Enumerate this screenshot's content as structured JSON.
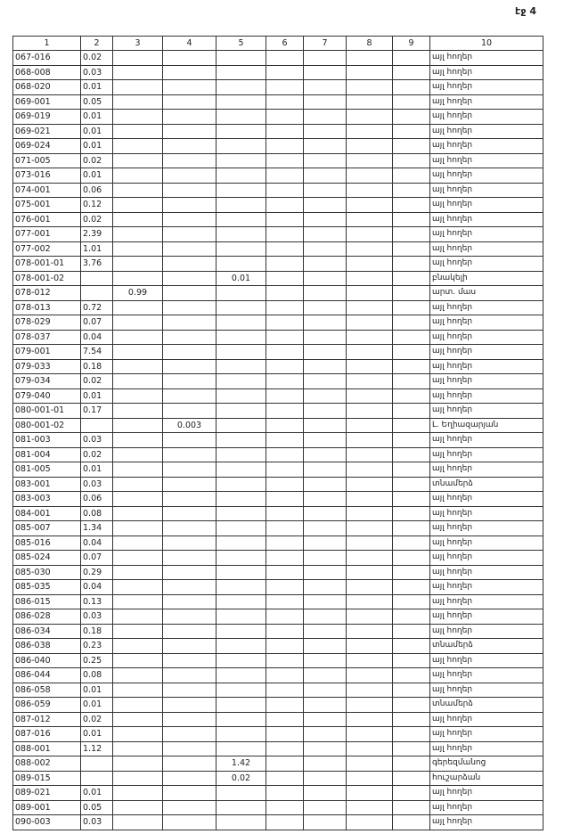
{
  "header": {
    "page": "էջ 4"
  },
  "table": {
    "columns": [
      "1",
      "2",
      "3",
      "4",
      "5",
      "6",
      "7",
      "8",
      "9",
      "10"
    ],
    "rows": [
      {
        "1": "067-016",
        "2": "0.02",
        "10": "այլ հողեր"
      },
      {
        "1": "068-008",
        "2": "0.03",
        "10": "այլ հողեր"
      },
      {
        "1": "068-020",
        "2": "0.01",
        "10": "այլ հողեր"
      },
      {
        "1": "069-001",
        "2": "0.05",
        "10": "այլ հողեր"
      },
      {
        "1": "069-019",
        "2": "0.01",
        "10": "այլ հողեր"
      },
      {
        "1": "069-021",
        "2": "0.01",
        "10": "այլ հողեր"
      },
      {
        "1": "069-024",
        "2": "0.01",
        "10": "այլ հողեր"
      },
      {
        "1": "071-005",
        "2": "0.02",
        "10": "այլ հողեր"
      },
      {
        "1": "073-016",
        "2": "0.01",
        "10": "այլ հողեր"
      },
      {
        "1": "074-001",
        "2": "0.06",
        "10": "այլ հողեր"
      },
      {
        "1": "075-001",
        "2": "0.12",
        "10": "այլ հողեր"
      },
      {
        "1": "076-001",
        "2": "0.02",
        "10": "այլ հողեր"
      },
      {
        "1": "077-001",
        "2": "2.39",
        "10": "այլ հողեր"
      },
      {
        "1": "077-002",
        "2": "1.01",
        "10": "այլ հողեր"
      },
      {
        "1": "078-001-01",
        "2": "3.76",
        "10": "այլ հողեր"
      },
      {
        "1": "078-001-02",
        "5": "0.01",
        "10": "բնակելի"
      },
      {
        "1": "078-012",
        "3": "0.99",
        "10": "արտ. մաս"
      },
      {
        "1": "078-013",
        "2": "0.72",
        "10": "այլ հողեր"
      },
      {
        "1": "078-029",
        "2": "0.07",
        "10": "այլ հողեր"
      },
      {
        "1": "078-037",
        "2": "0.04",
        "10": "այլ հողեր"
      },
      {
        "1": "079-001",
        "2": "7.54",
        "10": "այլ հողեր"
      },
      {
        "1": "079-033",
        "2": "0.18",
        "10": "այլ հողեր"
      },
      {
        "1": "079-034",
        "2": "0.02",
        "10": "այլ հողեր"
      },
      {
        "1": "079-040",
        "2": "0.01",
        "10": "այլ հողեր"
      },
      {
        "1": "080-001-01",
        "2": "0.17",
        "10": "այլ հողեր"
      },
      {
        "1": "080-001-02",
        "4": "0.003",
        "10": "Լ. Եղիազարյան"
      },
      {
        "1": "081-003",
        "2": "0.03",
        "10": "այլ հողեր"
      },
      {
        "1": "081-004",
        "2": "0.02",
        "10": "այլ հողեր"
      },
      {
        "1": "081-005",
        "2": "0.01",
        "10": "այլ հողեր"
      },
      {
        "1": "083-001",
        "2": "0.03",
        "10": "տնամերձ"
      },
      {
        "1": "083-003",
        "2": "0.06",
        "10": "այլ հողեր"
      },
      {
        "1": "084-001",
        "2": "0.08",
        "10": "այլ հողեր"
      },
      {
        "1": "085-007",
        "2": "1.34",
        "10": "այլ հողեր"
      },
      {
        "1": "085-016",
        "2": "0.04",
        "10": "այլ հողեր"
      },
      {
        "1": "085-024",
        "2": "0.07",
        "10": "այլ հողեր"
      },
      {
        "1": "085-030",
        "2": "0.29",
        "10": "այլ հողեր"
      },
      {
        "1": "085-035",
        "2": "0.04",
        "10": "այլ հողեր"
      },
      {
        "1": "086-015",
        "2": "0.13",
        "10": "այլ հողեր"
      },
      {
        "1": "086-028",
        "2": "0.03",
        "10": "այլ հողեր"
      },
      {
        "1": "086-034",
        "2": "0.18",
        "10": "այլ հողեր"
      },
      {
        "1": "086-038",
        "2": "0.23",
        "10": "տնամերձ"
      },
      {
        "1": "086-040",
        "2": "0.25",
        "10": "այլ հողեր"
      },
      {
        "1": "086-044",
        "2": "0.08",
        "10": "այլ հողեր"
      },
      {
        "1": "086-058",
        "2": "0.01",
        "10": "այլ հողեր"
      },
      {
        "1": "086-059",
        "2": "0.01",
        "10": "տնամերձ"
      },
      {
        "1": "087-012",
        "2": "0.02",
        "10": "այլ հողեր"
      },
      {
        "1": "087-016",
        "2": "0.01",
        "10": "այլ հողեր"
      },
      {
        "1": "088-001",
        "2": "1.12",
        "10": "այլ հողեր"
      },
      {
        "1": "088-002",
        "5": "1.42",
        "10": "գերեզմանոց"
      },
      {
        "1": "089-015",
        "5": "0.02",
        "10": "հուշարձան"
      },
      {
        "1": "089-021",
        "2": "0.01",
        "10": "այլ հողեր"
      },
      {
        "1": "089-001",
        "2": "0.05",
        "10": "այլ հողեր"
      },
      {
        "1": "090-003",
        "2": "0.03",
        "10": "այլ հողեր"
      }
    ]
  }
}
